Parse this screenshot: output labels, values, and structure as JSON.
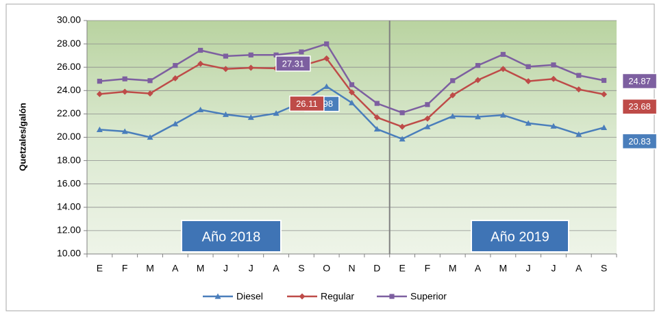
{
  "chart_data": {
    "type": "line",
    "y_label": "Quetzales/galón",
    "categories": [
      "E",
      "F",
      "M",
      "A",
      "M",
      "J",
      "J",
      "A",
      "S",
      "O",
      "N",
      "D",
      "E",
      "F",
      "M",
      "A",
      "M",
      "J",
      "J",
      "A",
      "S"
    ],
    "series": [
      {
        "name": "Diesel",
        "color": "#4a7ebb",
        "marker": "triangle",
        "values": [
          20.65,
          20.5,
          20.0,
          21.15,
          22.35,
          21.95,
          21.7,
          22.05,
          22.98,
          24.35,
          22.95,
          20.7,
          19.85,
          20.9,
          21.8,
          21.75,
          21.9,
          21.2,
          20.95,
          20.25,
          20.83
        ]
      },
      {
        "name": "Regular",
        "color": "#be4b48",
        "marker": "diamond",
        "values": [
          23.7,
          23.9,
          23.75,
          25.05,
          26.3,
          25.85,
          25.95,
          25.9,
          26.11,
          26.75,
          23.85,
          21.7,
          20.9,
          21.6,
          23.6,
          24.9,
          25.85,
          24.8,
          25.0,
          24.1,
          23.68
        ]
      },
      {
        "name": "Superior",
        "color": "#7d5fa0",
        "marker": "square",
        "values": [
          24.8,
          25.0,
          24.85,
          26.15,
          27.45,
          26.95,
          27.05,
          27.05,
          27.31,
          28.0,
          24.5,
          22.9,
          22.1,
          22.8,
          24.85,
          26.15,
          27.1,
          26.05,
          26.2,
          25.3,
          24.87
        ]
      }
    ],
    "labeled_points": [
      8,
      20
    ],
    "annotations": [
      "Año 2018",
      "Año 2019"
    ],
    "ylim": [
      10,
      30
    ],
    "yticks": [
      {
        "value": 10,
        "label": "10.00"
      },
      {
        "value": 12,
        "label": "12.00"
      },
      {
        "value": 14,
        "label": "14.00"
      },
      {
        "value": 16,
        "label": "16.00"
      },
      {
        "value": 18,
        "label": "18.00"
      },
      {
        "value": 20,
        "label": "20.00"
      },
      {
        "value": 22,
        "label": "22.00"
      },
      {
        "value": 24,
        "label": "24.00"
      },
      {
        "value": 26,
        "label": "26.00"
      },
      {
        "value": 28,
        "label": "28.00"
      },
      {
        "value": 30,
        "label": "30.00"
      }
    ],
    "grid": true,
    "legend": "bottom"
  }
}
